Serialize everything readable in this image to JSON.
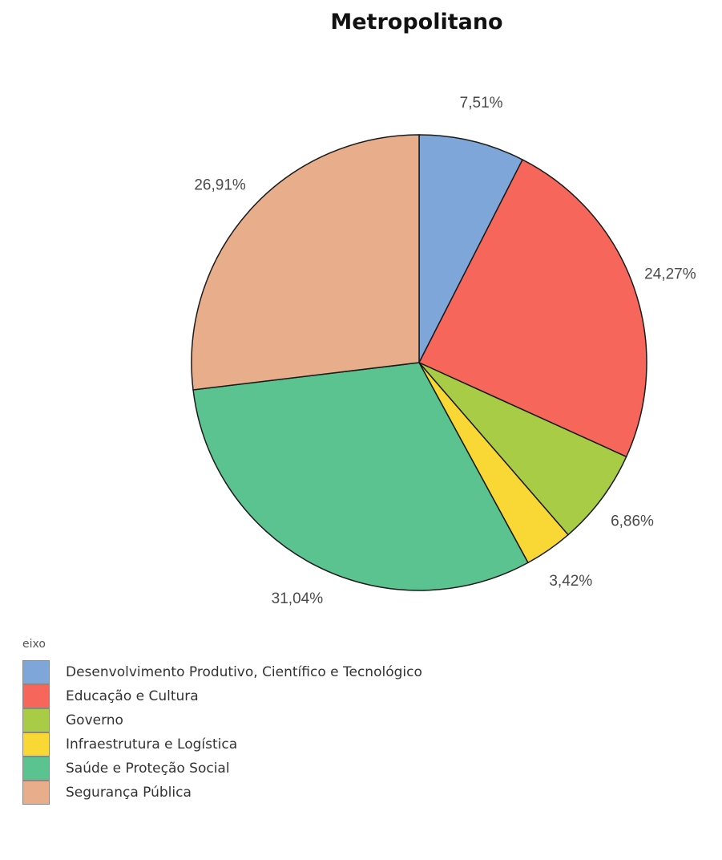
{
  "chart_data": {
    "type": "pie",
    "title": "Metropolitano",
    "legend_title": "eixo",
    "legend_position": "bottom-left",
    "slices": [
      {
        "label": "Desenvolvimento Produtivo, Científico e Tecnológico",
        "value": 7.51,
        "display": "7,51%",
        "color": "#7EA6D8"
      },
      {
        "label": "Educação e Cultura",
        "value": 24.27,
        "display": "24,27%",
        "color": "#F7665A"
      },
      {
        "label": "Governo",
        "value": 6.86,
        "display": "6,86%",
        "color": "#A8CC46"
      },
      {
        "label": "Infraestrutura e Logística",
        "value": 3.42,
        "display": "3,42%",
        "color": "#F9D835"
      },
      {
        "label": "Saúde e Proteção Social",
        "value": 31.04,
        "display": "31,04%",
        "color": "#5BC38F"
      },
      {
        "label": "Segurança Pública",
        "value": 26.91,
        "display": "26,91%",
        "color": "#E8AE8C"
      }
    ]
  }
}
